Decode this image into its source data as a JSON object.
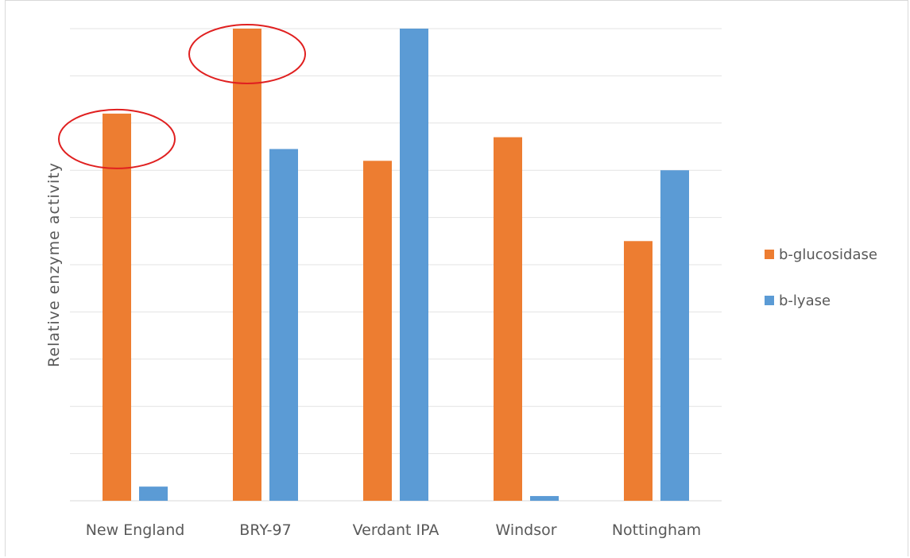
{
  "chart_data": {
    "type": "bar",
    "categories": [
      "New England",
      "BRY-97",
      "Verdant IPA",
      "Windsor",
      "Nottingham"
    ],
    "series": [
      {
        "name": "b-glucosidase",
        "color": "#ed7d31",
        "values": [
          8.2,
          10.0,
          7.2,
          7.7,
          5.5
        ]
      },
      {
        "name": "b-lyase",
        "color": "#5b9bd5",
        "values": [
          0.3,
          7.45,
          10.0,
          0.1,
          7.0
        ]
      }
    ],
    "ylabel": "Relative enzyme activity",
    "ylim": [
      0,
      10
    ],
    "yticks_shown": false,
    "grid": true,
    "legend_position": "right",
    "annotations": [
      {
        "type": "ellipse",
        "color": "#e02020",
        "target": "New England b-glucosidase bar top"
      },
      {
        "type": "ellipse",
        "color": "#e02020",
        "target": "BRY-97 b-glucosidase bar top"
      }
    ]
  }
}
